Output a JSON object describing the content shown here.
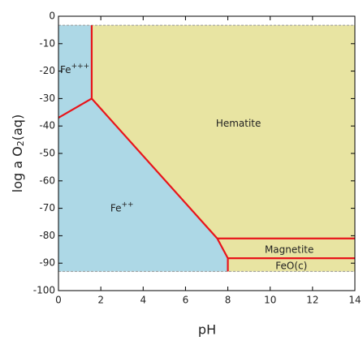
{
  "chart_data": {
    "type": "phase-diagram",
    "xlabel": "pH",
    "ylabel": [
      "log a O",
      "2",
      "(aq)"
    ],
    "xlim": [
      0,
      14
    ],
    "ylim": [
      -100,
      0
    ],
    "xticks": [
      0,
      2,
      4,
      6,
      8,
      10,
      12,
      14
    ],
    "yticks": [
      0,
      -10,
      -20,
      -30,
      -40,
      -50,
      -60,
      -70,
      -80,
      -90,
      -100
    ],
    "regions": [
      {
        "name": [
          "Fe",
          "+++"
        ],
        "color": "#add8e6",
        "x": [
          0,
          1.57,
          1.57,
          0
        ],
        "y": [
          -3.3,
          -3.3,
          -30,
          -37
        ]
      },
      {
        "name": [
          "Fe",
          "++"
        ],
        "color": "#add8e6",
        "x": [
          0,
          1.57,
          7.5,
          8,
          8,
          0
        ],
        "y": [
          -37,
          -30,
          -81,
          -88.2,
          -93,
          -93
        ]
      },
      {
        "name": [
          "Hematite"
        ],
        "color": "#e8e4a2",
        "x": [
          1.57,
          14,
          14,
          7.5,
          1.57
        ],
        "y": [
          -3.3,
          -3.3,
          -81,
          -81,
          -30
        ]
      },
      {
        "name": [
          "Magnetite"
        ],
        "color": "#e8e4a2",
        "x": [
          7.5,
          14,
          14,
          8
        ],
        "y": [
          -81,
          -81,
          -88.2,
          -88.2
        ]
      },
      {
        "name": [
          "FeO(c)"
        ],
        "color": "#e8e4a2",
        "x": [
          8,
          14,
          14,
          8
        ],
        "y": [
          -88.2,
          -88.2,
          -93,
          -93
        ]
      }
    ],
    "boundaries": [
      {
        "x": [
          1.57,
          1.57
        ],
        "y": [
          -3.3,
          -30
        ]
      },
      {
        "x": [
          0,
          1.57,
          7.5,
          8,
          8
        ],
        "y": [
          -37,
          -30,
          -81,
          -88.2,
          -93
        ]
      },
      {
        "x": [
          7.5,
          14
        ],
        "y": [
          -81,
          -81
        ]
      },
      {
        "x": [
          8,
          14
        ],
        "y": [
          -88.2,
          -88.2
        ]
      }
    ],
    "boundary_color": "#e8141a",
    "stability_limits": [
      -3.3,
      -93
    ],
    "limit_color": "#999999"
  }
}
